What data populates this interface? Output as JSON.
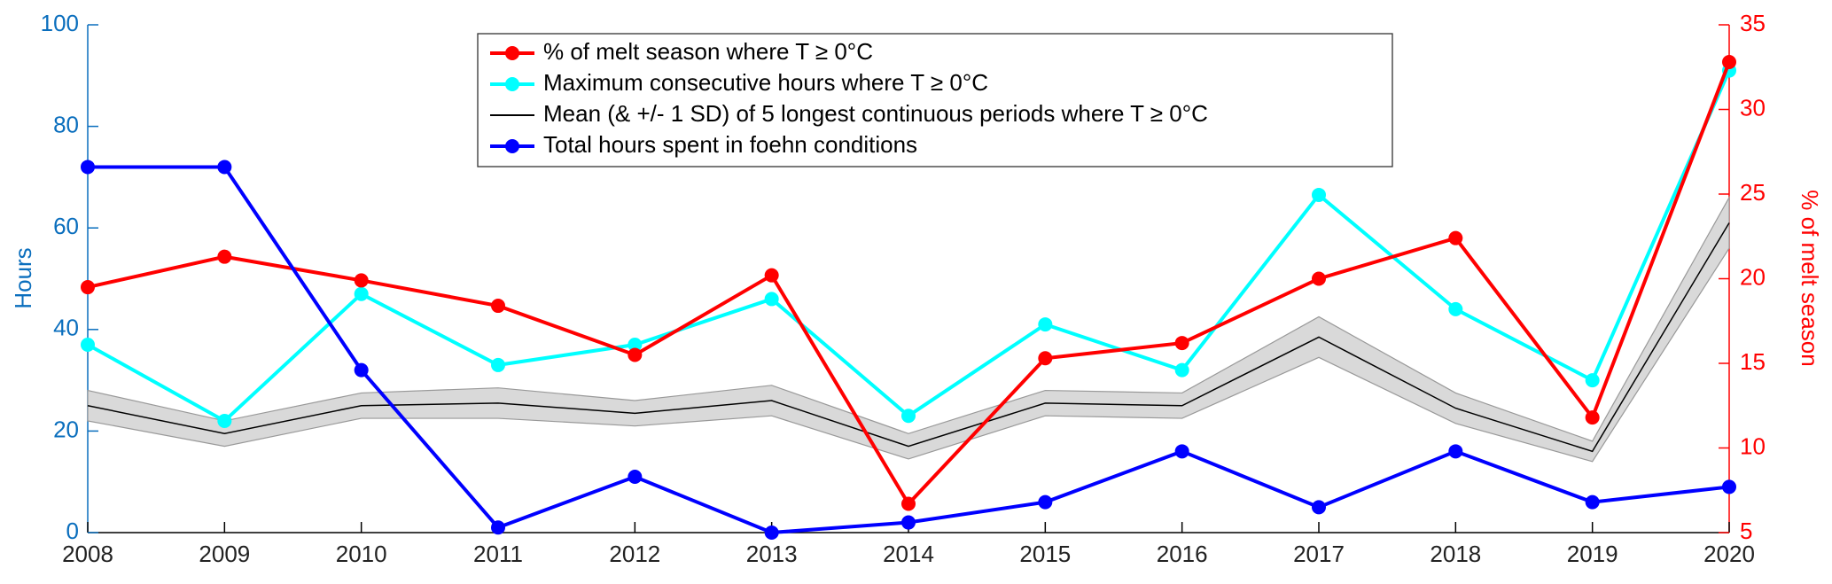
{
  "chart_data": {
    "type": "line",
    "ylabel": "Hours",
    "y2label": "% of melt season",
    "x": [
      2008,
      2009,
      2010,
      2011,
      2012,
      2013,
      2014,
      2015,
      2016,
      2017,
      2018,
      2019,
      2020
    ],
    "xlim": [
      2008,
      2020
    ],
    "xticks": [
      2008,
      2009,
      2010,
      2011,
      2012,
      2013,
      2014,
      2015,
      2016,
      2017,
      2018,
      2019,
      2020
    ],
    "ylim": [
      0,
      100
    ],
    "yticks": [
      0,
      20,
      40,
      60,
      80,
      100
    ],
    "y2lim": [
      5,
      35
    ],
    "y2ticks": [
      5,
      10,
      15,
      20,
      25,
      30,
      35
    ],
    "ycolor": "#0a6ebd",
    "y2color": "#ff0000",
    "legend": "upper center",
    "series": [
      {
        "name": "% of melt season where T ≥ 0°C",
        "color": "#ff0000",
        "axis": "y2",
        "marker": true,
        "values": [
          19.5,
          21.3,
          19.9,
          18.4,
          15.5,
          20.2,
          6.7,
          15.3,
          16.2,
          20.0,
          22.4,
          11.8,
          32.8
        ]
      },
      {
        "name": "Maximum consecutive hours where T ≥ 0°C",
        "color": "#00ffff",
        "marker": true,
        "values": [
          37,
          22,
          47,
          33,
          37,
          46,
          23,
          41,
          32,
          66.5,
          44,
          30,
          91
        ]
      },
      {
        "name": "Mean (& +/- 1 SD) of 5 longest continuous periods where T ≥ 0°C",
        "color": "#000000",
        "marker": false,
        "values": [
          25,
          19.5,
          25,
          25.5,
          23.5,
          26,
          17,
          25.5,
          25,
          38.5,
          24.5,
          16,
          61
        ],
        "sd": [
          3,
          2.5,
          2.5,
          3,
          2.5,
          3,
          2.5,
          2.5,
          2.5,
          4,
          3,
          2,
          5
        ],
        "band_color": "#d9d9d9"
      },
      {
        "name": "Total hours spent in foehn conditions",
        "color": "#0000ff",
        "marker": true,
        "values": [
          72,
          72,
          32,
          1,
          11,
          0,
          2,
          6,
          16,
          5,
          16,
          6,
          9
        ]
      }
    ]
  }
}
